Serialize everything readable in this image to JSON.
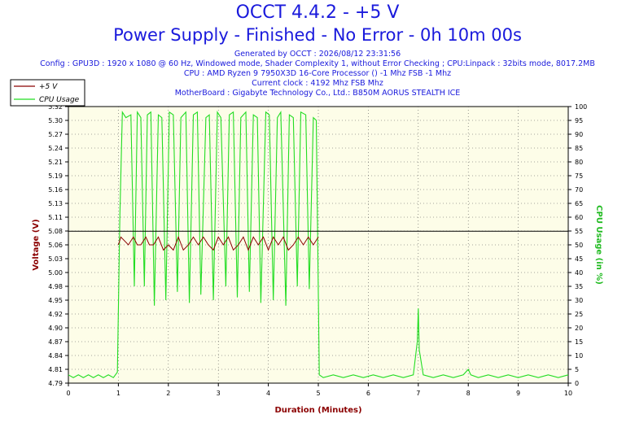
{
  "header": {
    "title": "OCCT 4.4.2 - +5 V",
    "subtitle": "Power Supply - Finished - No Error - 0h 10m 00s",
    "generated": "Generated by OCCT : 2026/08/12 23:31:56",
    "config": "Config : GPU3D : 1920 x 1080 @ 60 Hz, Windowed mode, Shader Complexity 1, without Error Checking ; CPU:Linpack : 32bits mode, 8017.2MB",
    "cpu": "CPU : AMD Ryzen 9 7950X3D 16-Core Processor () -1 Mhz FSB -1 Mhz",
    "clock": "Current clock : 4192 Mhz FSB  Mhz",
    "motherboard": "MotherBoard : Gigabyte Technology Co., Ltd.: B850M AORUS STEALTH ICE"
  },
  "colors": {
    "voltage": "#8b0000",
    "cpu": "#22dd22",
    "text": "#1a1adc",
    "plot_bg": "#fdfde8"
  },
  "chart_data": {
    "type": "line",
    "xlabel": "Duration (Minutes)",
    "ylabel": "Voltage (V)",
    "y2label": "CPU Usage (in %)",
    "xlim": [
      0,
      10
    ],
    "ylim": [
      4.79,
      5.32
    ],
    "y2lim": [
      0,
      100
    ],
    "grid": true,
    "legend_position": "top-left",
    "x_ticks": [
      "0",
      "1",
      "2",
      "3",
      "4",
      "5",
      "6",
      "7",
      "8",
      "9",
      "10"
    ],
    "y_ticks": [
      "4.79",
      "4.81",
      "4.84",
      "4.87",
      "4.90",
      "4.92",
      "4.95",
      "4.98",
      "5.00",
      "5.03",
      "5.06",
      "5.08",
      "5.11",
      "5.13",
      "5.16",
      "5.19",
      "5.21",
      "5.24",
      "5.27",
      "5.30",
      "5.32"
    ],
    "y2_ticks": [
      "0",
      "5",
      "10",
      "15",
      "20",
      "25",
      "30",
      "35",
      "40",
      "45",
      "50",
      "55",
      "60",
      "65",
      "70",
      "75",
      "80",
      "85",
      "90",
      "95",
      "100"
    ],
    "series": [
      {
        "name": "+5 V",
        "axis": "left",
        "x": [
          1.0,
          1.05,
          1.2,
          1.3,
          1.38,
          1.45,
          1.55,
          1.62,
          1.7,
          1.8,
          1.9,
          2.0,
          2.1,
          2.2,
          2.3,
          2.4,
          2.5,
          2.6,
          2.7,
          2.8,
          2.9,
          3.0,
          3.1,
          3.2,
          3.3,
          3.4,
          3.5,
          3.6,
          3.7,
          3.8,
          3.9,
          4.0,
          4.1,
          4.2,
          4.3,
          4.4,
          4.5,
          4.6,
          4.7,
          4.8,
          4.9,
          5.0
        ],
        "values": [
          5.055,
          5.07,
          5.055,
          5.07,
          5.055,
          5.055,
          5.07,
          5.055,
          5.055,
          5.07,
          5.045,
          5.055,
          5.045,
          5.07,
          5.045,
          5.055,
          5.07,
          5.055,
          5.07,
          5.055,
          5.045,
          5.07,
          5.055,
          5.07,
          5.045,
          5.055,
          5.07,
          5.045,
          5.07,
          5.055,
          5.07,
          5.045,
          5.07,
          5.055,
          5.07,
          5.045,
          5.055,
          5.07,
          5.055,
          5.07,
          5.055,
          5.07
        ]
      },
      {
        "name": "CPU Usage",
        "axis": "right",
        "x": [
          0,
          0.1,
          0.2,
          0.3,
          0.4,
          0.5,
          0.6,
          0.7,
          0.8,
          0.9,
          0.98,
          1.03,
          1.08,
          1.15,
          1.25,
          1.32,
          1.38,
          1.45,
          1.52,
          1.58,
          1.65,
          1.72,
          1.8,
          1.87,
          1.95,
          2.02,
          2.1,
          2.18,
          2.25,
          2.35,
          2.42,
          2.5,
          2.58,
          2.65,
          2.75,
          2.82,
          2.9,
          2.98,
          3.05,
          3.15,
          3.22,
          3.3,
          3.38,
          3.45,
          3.55,
          3.62,
          3.7,
          3.78,
          3.85,
          3.95,
          4.02,
          4.1,
          4.18,
          4.25,
          4.35,
          4.42,
          4.5,
          4.58,
          4.65,
          4.75,
          4.82,
          4.9,
          4.96,
          5.02,
          5.1,
          5.3,
          5.5,
          5.7,
          5.9,
          6.1,
          6.3,
          6.5,
          6.7,
          6.9,
          6.98,
          7.0,
          7.02,
          7.1,
          7.3,
          7.5,
          7.7,
          7.9,
          8.0,
          8.05,
          8.2,
          8.4,
          8.6,
          8.8,
          9.0,
          9.2,
          9.4,
          9.6,
          9.8,
          10.0
        ],
        "values": [
          3,
          2,
          3,
          2,
          3,
          2,
          3,
          2,
          3,
          2,
          4,
          60,
          98,
          96,
          97,
          35,
          98,
          96,
          35,
          97,
          98,
          28,
          97,
          96,
          30,
          98,
          97,
          33,
          96,
          98,
          29,
          97,
          98,
          32,
          96,
          97,
          30,
          98,
          96,
          35,
          97,
          98,
          31,
          96,
          98,
          33,
          97,
          96,
          29,
          98,
          97,
          30,
          96,
          98,
          28,
          97,
          96,
          35,
          98,
          97,
          34,
          96,
          95,
          3,
          2,
          3,
          2,
          3,
          2,
          3,
          2,
          3,
          2,
          3,
          15,
          27,
          12,
          3,
          2,
          3,
          2,
          3,
          5,
          3,
          2,
          3,
          2,
          3,
          2,
          3,
          2,
          3,
          2,
          3
        ]
      }
    ]
  }
}
